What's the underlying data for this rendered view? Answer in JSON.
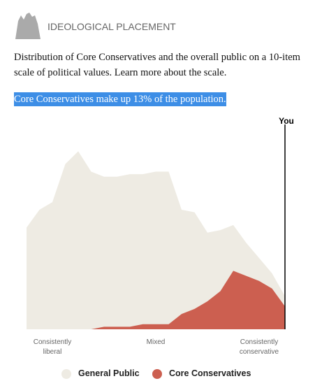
{
  "header": {
    "title": "IDEOLOGICAL PLACEMENT"
  },
  "description": "Distribution of Core Conservatives and the overall public on a 10-item scale of political values. Learn more about the scale.",
  "highlight": "Core Conservatives make up 13% of the population.",
  "chart_data": {
    "type": "area",
    "x": [
      -10,
      -9,
      -8,
      -7,
      -6,
      -5,
      -4,
      -3,
      -2,
      -1,
      0,
      1,
      2,
      3,
      4,
      5,
      6,
      7,
      8,
      9,
      10
    ],
    "xlim": [
      -10,
      10
    ],
    "xticks": [
      {
        "value": -8,
        "label": "Consistently liberal"
      },
      {
        "value": 0,
        "label": "Mixed"
      },
      {
        "value": 8,
        "label": "Consistently conservative"
      }
    ],
    "ylim": [
      0,
      8
    ],
    "series": [
      {
        "name": "General Public",
        "color": "#eeebe3",
        "values": [
          4.0,
          4.7,
          5.0,
          6.5,
          7.0,
          6.2,
          6.0,
          6.0,
          6.1,
          6.1,
          6.2,
          6.2,
          4.7,
          4.6,
          3.8,
          3.9,
          4.1,
          3.4,
          2.8,
          2.2,
          1.3
        ]
      },
      {
        "name": "Core Conservatives",
        "color": "#cc5f50",
        "values": [
          0,
          0,
          0,
          0,
          0,
          0,
          0.1,
          0.1,
          0.1,
          0.2,
          0.2,
          0.2,
          0.6,
          0.8,
          1.1,
          1.5,
          2.3,
          2.1,
          1.9,
          1.6,
          0.9
        ]
      }
    ],
    "marker": {
      "label": "You",
      "x": 10
    }
  }
}
